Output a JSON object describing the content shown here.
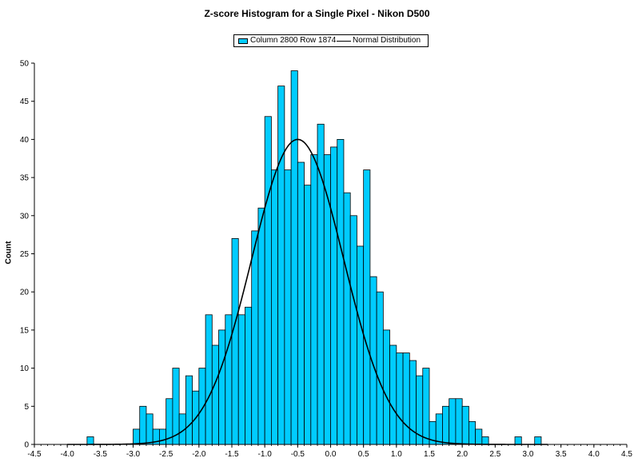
{
  "colors": {
    "bar_fill": "#00ccff",
    "bar_stroke": "#000000",
    "curve": "#000000",
    "axis": "#000000"
  },
  "chart_data": {
    "type": "bar",
    "title": "Z-score Histogram for a Single Pixel - Nikon D500",
    "xlabel": "",
    "ylabel": "Count",
    "xlim": [
      -4.5,
      4.5
    ],
    "ylim": [
      0,
      50
    ],
    "xticks": [
      "-4.5",
      "-4.0",
      "-3.5",
      "-3.0",
      "-2.5",
      "-2.0",
      "-1.5",
      "-1.0",
      "-0.5",
      "0.0",
      "0.5",
      "1.0",
      "1.5",
      "2.0",
      "2.5",
      "3.0",
      "3.5",
      "4.0",
      "4.5"
    ],
    "yticks": [
      "0",
      "5",
      "10",
      "15",
      "20",
      "25",
      "30",
      "35",
      "40",
      "45",
      "50"
    ],
    "grid": false,
    "legend_position": "top-center",
    "bin_width": 0.1,
    "bin_start": -4.5,
    "series": [
      {
        "name": "Column 2800 Row 1874",
        "type": "bar",
        "values": [
          0,
          0,
          0,
          0,
          0,
          0,
          0,
          0,
          1,
          0,
          0,
          0,
          0,
          0,
          0,
          2,
          5,
          4,
          2,
          2,
          6,
          10,
          4,
          9,
          7,
          10,
          17,
          13,
          15,
          17,
          27,
          17,
          18,
          28,
          31,
          43,
          36,
          47,
          36,
          49,
          37,
          34,
          38,
          42,
          38,
          39,
          40,
          33,
          30,
          26,
          36,
          22,
          20,
          15,
          13,
          12,
          12,
          11,
          9,
          10,
          3,
          4,
          5,
          6,
          6,
          5,
          3,
          2,
          1,
          0,
          0,
          0,
          0,
          1,
          0,
          0,
          1,
          0,
          0,
          0,
          0,
          0,
          0,
          0,
          0,
          0,
          0,
          0,
          0,
          0
        ]
      },
      {
        "name": "Normal Distribution",
        "type": "line",
        "mean": -0.5,
        "stdev": 0.7,
        "peak": 40,
        "x_range": [
          -4.0,
          3.3
        ]
      }
    ]
  }
}
